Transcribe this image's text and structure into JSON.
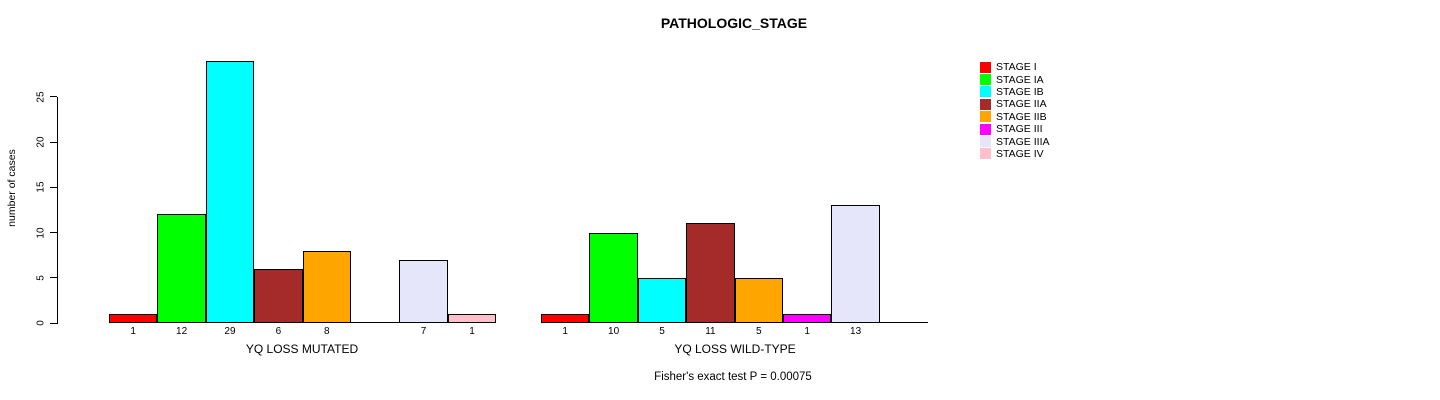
{
  "chart_data": {
    "type": "bar",
    "title": "PATHOLOGIC_STAGE",
    "ylabel": "number of cases",
    "y_axis": {
      "ticks": [
        0,
        5,
        10,
        15,
        20,
        25
      ],
      "lim": [
        0,
        29
      ],
      "grid": false
    },
    "categories": [
      "STAGE I",
      "STAGE IA",
      "STAGE IB",
      "STAGE IIA",
      "STAGE IIB",
      "STAGE III",
      "STAGE IIIA",
      "STAGE IV"
    ],
    "legend": [
      {
        "label": "STAGE I",
        "color": "#FF0000"
      },
      {
        "label": "STAGE IA",
        "color": "#00FF00"
      },
      {
        "label": "STAGE IB",
        "color": "#00FFFF"
      },
      {
        "label": "STAGE IIA",
        "color": "#A52A2A"
      },
      {
        "label": "STAGE IIB",
        "color": "#FFA500"
      },
      {
        "label": "STAGE III",
        "color": "#FF00FF"
      },
      {
        "label": "STAGE IIIA",
        "color": "#E6E6FA"
      },
      {
        "label": "STAGE IV",
        "color": "#FFC0CB"
      }
    ],
    "legend_position": "right",
    "series": [
      {
        "name": "YQ LOSS MUTATED",
        "label": "YQ LOSS MUTATED",
        "values": [
          1,
          12,
          29,
          6,
          8,
          0,
          7,
          1
        ]
      },
      {
        "name": "YQ LOSS WILD-TYPE",
        "label": "YQ LOSS WILD-TYPE",
        "values": [
          1,
          10,
          5,
          11,
          5,
          1,
          13,
          0
        ]
      }
    ],
    "bar_border_color": "#000000",
    "footnote": "Fisher's exact test P = 0.00075"
  }
}
